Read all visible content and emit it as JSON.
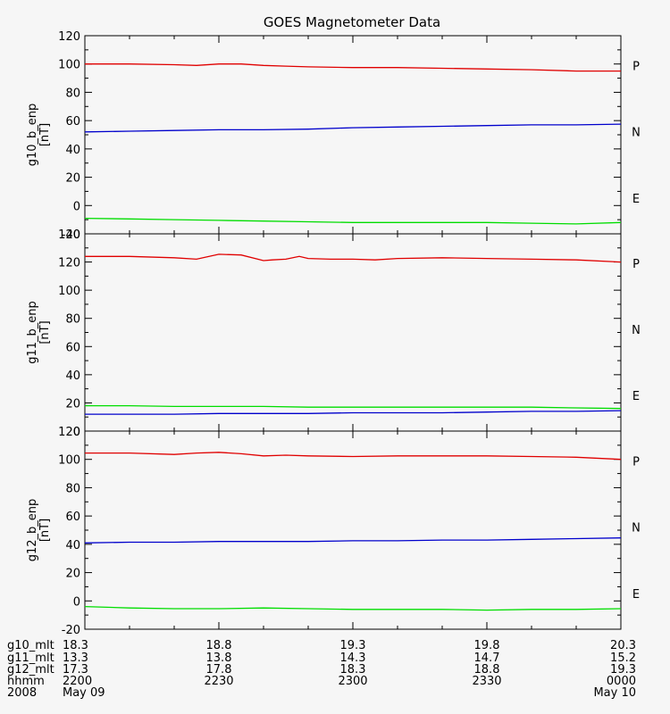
{
  "title": "GOES Magnetometer Data",
  "chart_data": [
    {
      "type": "line",
      "ylabel": "g10_b_enp",
      "yunit": "[nT]",
      "ylim": [
        -20,
        120
      ],
      "yticks": [
        -20,
        0,
        20,
        40,
        60,
        80,
        100,
        120
      ],
      "xlim": [
        0,
        120
      ],
      "series": [
        {
          "name": "P",
          "color": "#e00000",
          "x": [
            0,
            5,
            10,
            20,
            25,
            30,
            35,
            40,
            45,
            50,
            60,
            70,
            80,
            90,
            100,
            110,
            120
          ],
          "y": [
            100,
            100,
            100,
            99.5,
            99,
            100,
            100,
            99,
            98.5,
            98,
            97.5,
            97.5,
            97,
            96.5,
            96,
            95,
            95
          ]
        },
        {
          "name": "N",
          "color": "#00dd00",
          "x": [
            0,
            10,
            20,
            30,
            40,
            50,
            60,
            70,
            80,
            90,
            100,
            110,
            120
          ],
          "y": [
            -9,
            -9.5,
            -10,
            -10.5,
            -11,
            -11.5,
            -12,
            -12,
            -12,
            -12,
            -12.5,
            -13,
            -12
          ]
        },
        {
          "name": "E",
          "color": "#0000cc",
          "x": [
            0,
            10,
            20,
            30,
            40,
            50,
            60,
            70,
            80,
            90,
            100,
            110,
            120
          ],
          "y": [
            52,
            52.5,
            53,
            53.5,
            53.5,
            54,
            55,
            55.5,
            56,
            56.5,
            57,
            57,
            57.5
          ]
        }
      ]
    },
    {
      "type": "line",
      "ylabel": "g11_b_enp",
      "yunit": "[nT]",
      "ylim": [
        0,
        140
      ],
      "yticks": [
        0,
        20,
        40,
        60,
        80,
        100,
        120,
        140
      ],
      "xlim": [
        0,
        120
      ],
      "series": [
        {
          "name": "P",
          "color": "#e00000",
          "x": [
            0,
            10,
            20,
            25,
            30,
            35,
            40,
            42,
            45,
            48,
            50,
            55,
            60,
            65,
            70,
            80,
            90,
            100,
            110,
            120
          ],
          "y": [
            124,
            124,
            123,
            122,
            125.5,
            125,
            121,
            121.5,
            122,
            124,
            122.5,
            122,
            122,
            121.5,
            122.5,
            123,
            122.5,
            122,
            121.5,
            120
          ]
        },
        {
          "name": "N",
          "color": "#00dd00",
          "x": [
            0,
            10,
            20,
            30,
            40,
            50,
            60,
            70,
            80,
            90,
            100,
            110,
            120
          ],
          "y": [
            18,
            18,
            17.5,
            17.5,
            17.5,
            17,
            17,
            17,
            17,
            17,
            17,
            16.5,
            16
          ]
        },
        {
          "name": "E",
          "color": "#0000cc",
          "x": [
            0,
            10,
            20,
            30,
            40,
            50,
            60,
            70,
            80,
            90,
            100,
            110,
            120
          ],
          "y": [
            12,
            12,
            12,
            12.5,
            12.5,
            12.5,
            13,
            13,
            13,
            13.5,
            14,
            14,
            14.5
          ]
        }
      ]
    },
    {
      "type": "line",
      "ylabel": "g12_b_enp",
      "yunit": "[nT]",
      "ylim": [
        -20,
        120
      ],
      "yticks": [
        -20,
        0,
        20,
        40,
        60,
        80,
        100,
        120
      ],
      "xlim": [
        0,
        120
      ],
      "series": [
        {
          "name": "P",
          "color": "#e00000",
          "x": [
            0,
            10,
            20,
            25,
            30,
            35,
            40,
            45,
            50,
            60,
            70,
            80,
            90,
            100,
            110,
            120
          ],
          "y": [
            104.5,
            104.5,
            103.5,
            104.5,
            105,
            104,
            102.5,
            103,
            102.5,
            102,
            102.5,
            102.5,
            102.5,
            102,
            101.5,
            100
          ]
        },
        {
          "name": "N",
          "color": "#00dd00",
          "x": [
            0,
            10,
            20,
            30,
            40,
            50,
            60,
            70,
            80,
            90,
            100,
            110,
            120
          ],
          "y": [
            -4,
            -5,
            -5.5,
            -5.5,
            -5,
            -5.5,
            -6,
            -6,
            -6,
            -6.5,
            -6,
            -6,
            -5.5
          ]
        },
        {
          "name": "E",
          "color": "#0000cc",
          "x": [
            0,
            10,
            20,
            30,
            40,
            50,
            60,
            70,
            80,
            90,
            100,
            110,
            120
          ],
          "y": [
            41,
            41.5,
            41.5,
            42,
            42,
            42,
            42.5,
            42.5,
            43,
            43,
            43.5,
            44,
            44.5
          ]
        }
      ]
    }
  ],
  "x_axis": {
    "tick_positions": [
      0,
      30,
      60,
      90,
      120
    ],
    "rows": [
      {
        "label": "g10_mlt",
        "values": [
          "18.3",
          "18.8",
          "19.3",
          "19.8",
          "20.3"
        ]
      },
      {
        "label": "g11_mlt",
        "values": [
          "13.3",
          "13.8",
          "14.3",
          "14.7",
          "15.2"
        ]
      },
      {
        "label": "g12_mlt",
        "values": [
          "17.3",
          "17.8",
          "18.3",
          "18.8",
          "19.3"
        ]
      },
      {
        "label": "hhmm",
        "values": [
          "2200",
          "2230",
          "2300",
          "2330",
          "0000"
        ]
      },
      {
        "label": "2008",
        "values": [
          "May 09",
          "",
          "",
          "",
          "May 10"
        ]
      }
    ]
  }
}
